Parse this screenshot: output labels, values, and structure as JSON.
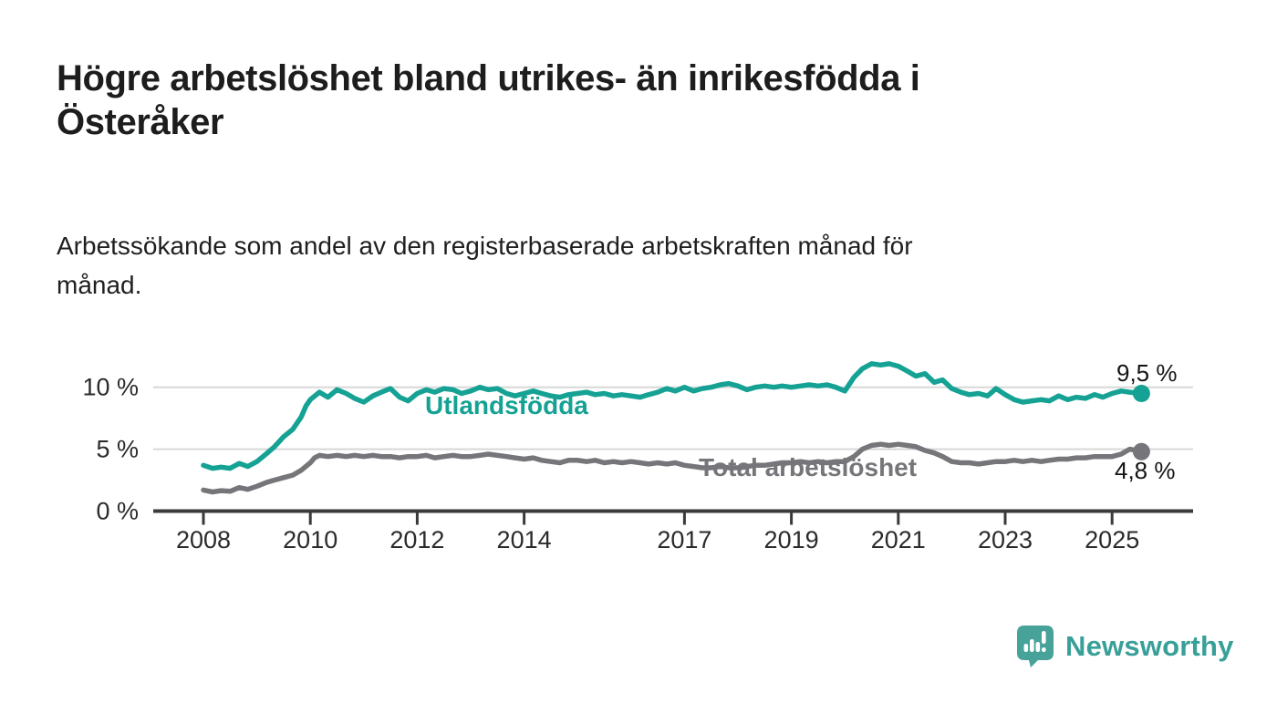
{
  "header": {
    "title": "Högre arbetslöshet bland utrikes- än inrikesfödda i\nÖsteråker",
    "subtitle": "Arbetssökande som andel av den registerbaserade arbetskraften månad för\nmånad."
  },
  "footer": {
    "brand": "Newsworthy",
    "logo_icon": "speech-bubble-bar-chart-icon"
  },
  "colors": {
    "foreign_born_line": "#15a294",
    "total_line": "#76767a",
    "grid": "#d8d8d8",
    "axis": "#3a3a3a",
    "tick_label": "#2b2b2b",
    "title_text": "#1d1d1d",
    "logo_teal": "#47a29a"
  },
  "chart_data": {
    "type": "line",
    "title": "",
    "xlabel": "",
    "ylabel": "",
    "x_range": [
      2007.05,
      2026.45
    ],
    "ylim": [
      0,
      12.5
    ],
    "grid": "horizontal",
    "legend_position": "inline-labels",
    "x_ticks": [
      2008,
      2010,
      2012,
      2014,
      2017,
      2019,
      2021,
      2023,
      2025
    ],
    "x_tick_labels": [
      "2008",
      "2010",
      "2012",
      "2014",
      "2017",
      "2019",
      "2021",
      "2023",
      "2025"
    ],
    "y_ticks": [
      0,
      5,
      10
    ],
    "y_tick_labels": [
      "0 %",
      "5 %",
      "10 %"
    ],
    "series": [
      {
        "id": "utlandsfodda",
        "name": "Utlandsfödda",
        "color": "#15a294",
        "end_label": "9,5 %",
        "end_value": 9.5,
        "points": [
          [
            2008.0,
            3.7
          ],
          [
            2008.17,
            3.45
          ],
          [
            2008.33,
            3.55
          ],
          [
            2008.5,
            3.45
          ],
          [
            2008.67,
            3.85
          ],
          [
            2008.83,
            3.6
          ],
          [
            2009.0,
            4.0
          ],
          [
            2009.17,
            4.6
          ],
          [
            2009.33,
            5.2
          ],
          [
            2009.5,
            6.0
          ],
          [
            2009.67,
            6.6
          ],
          [
            2009.83,
            7.6
          ],
          [
            2009.92,
            8.5
          ],
          [
            2010.0,
            9.0
          ],
          [
            2010.17,
            9.6
          ],
          [
            2010.33,
            9.2
          ],
          [
            2010.5,
            9.8
          ],
          [
            2010.67,
            9.5
          ],
          [
            2010.83,
            9.1
          ],
          [
            2011.0,
            8.8
          ],
          [
            2011.17,
            9.3
          ],
          [
            2011.33,
            9.6
          ],
          [
            2011.5,
            9.9
          ],
          [
            2011.67,
            9.2
          ],
          [
            2011.83,
            8.9
          ],
          [
            2012.0,
            9.5
          ],
          [
            2012.17,
            9.8
          ],
          [
            2012.33,
            9.6
          ],
          [
            2012.5,
            9.9
          ],
          [
            2012.67,
            9.8
          ],
          [
            2012.83,
            9.5
          ],
          [
            2013.0,
            9.7
          ],
          [
            2013.17,
            10.0
          ],
          [
            2013.33,
            9.8
          ],
          [
            2013.5,
            9.9
          ],
          [
            2013.67,
            9.5
          ],
          [
            2013.83,
            9.3
          ],
          [
            2014.0,
            9.5
          ],
          [
            2014.17,
            9.7
          ],
          [
            2014.33,
            9.5
          ],
          [
            2014.5,
            9.3
          ],
          [
            2014.67,
            9.2
          ],
          [
            2014.83,
            9.4
          ],
          [
            2015.0,
            9.5
          ],
          [
            2015.17,
            9.6
          ],
          [
            2015.33,
            9.4
          ],
          [
            2015.5,
            9.5
          ],
          [
            2015.67,
            9.3
          ],
          [
            2015.83,
            9.4
          ],
          [
            2016.0,
            9.3
          ],
          [
            2016.17,
            9.2
          ],
          [
            2016.33,
            9.4
          ],
          [
            2016.5,
            9.6
          ],
          [
            2016.67,
            9.9
          ],
          [
            2016.83,
            9.7
          ],
          [
            2017.0,
            10.0
          ],
          [
            2017.17,
            9.7
          ],
          [
            2017.33,
            9.9
          ],
          [
            2017.5,
            10.0
          ],
          [
            2017.67,
            10.2
          ],
          [
            2017.83,
            10.3
          ],
          [
            2018.0,
            10.1
          ],
          [
            2018.17,
            9.8
          ],
          [
            2018.33,
            10.0
          ],
          [
            2018.5,
            10.1
          ],
          [
            2018.67,
            10.0
          ],
          [
            2018.83,
            10.1
          ],
          [
            2019.0,
            10.0
          ],
          [
            2019.17,
            10.1
          ],
          [
            2019.33,
            10.2
          ],
          [
            2019.5,
            10.1
          ],
          [
            2019.67,
            10.2
          ],
          [
            2019.83,
            10.0
          ],
          [
            2020.0,
            9.7
          ],
          [
            2020.17,
            10.8
          ],
          [
            2020.33,
            11.5
          ],
          [
            2020.5,
            11.9
          ],
          [
            2020.67,
            11.8
          ],
          [
            2020.83,
            11.9
          ],
          [
            2021.0,
            11.7
          ],
          [
            2021.17,
            11.3
          ],
          [
            2021.33,
            10.9
          ],
          [
            2021.5,
            11.1
          ],
          [
            2021.67,
            10.4
          ],
          [
            2021.83,
            10.6
          ],
          [
            2022.0,
            9.9
          ],
          [
            2022.17,
            9.6
          ],
          [
            2022.33,
            9.4
          ],
          [
            2022.5,
            9.5
          ],
          [
            2022.67,
            9.3
          ],
          [
            2022.83,
            9.9
          ],
          [
            2023.0,
            9.4
          ],
          [
            2023.17,
            9.0
          ],
          [
            2023.33,
            8.8
          ],
          [
            2023.5,
            8.9
          ],
          [
            2023.67,
            9.0
          ],
          [
            2023.83,
            8.9
          ],
          [
            2024.0,
            9.3
          ],
          [
            2024.17,
            9.0
          ],
          [
            2024.33,
            9.2
          ],
          [
            2024.5,
            9.1
          ],
          [
            2024.67,
            9.4
          ],
          [
            2024.83,
            9.2
          ],
          [
            2025.0,
            9.5
          ],
          [
            2025.17,
            9.7
          ],
          [
            2025.33,
            9.6
          ],
          [
            2025.55,
            9.5
          ]
        ]
      },
      {
        "id": "total",
        "name": "Total arbetslöshet",
        "color": "#76767a",
        "end_label": "4,8 %",
        "end_value": 4.8,
        "points": [
          [
            2008.0,
            1.7
          ],
          [
            2008.17,
            1.55
          ],
          [
            2008.33,
            1.65
          ],
          [
            2008.5,
            1.6
          ],
          [
            2008.67,
            1.9
          ],
          [
            2008.83,
            1.75
          ],
          [
            2009.0,
            2.0
          ],
          [
            2009.17,
            2.3
          ],
          [
            2009.33,
            2.5
          ],
          [
            2009.5,
            2.7
          ],
          [
            2009.67,
            2.9
          ],
          [
            2009.83,
            3.3
          ],
          [
            2010.0,
            3.9
          ],
          [
            2010.08,
            4.3
          ],
          [
            2010.17,
            4.5
          ],
          [
            2010.33,
            4.4
          ],
          [
            2010.5,
            4.5
          ],
          [
            2010.67,
            4.4
          ],
          [
            2010.83,
            4.5
          ],
          [
            2011.0,
            4.4
          ],
          [
            2011.17,
            4.5
          ],
          [
            2011.33,
            4.4
          ],
          [
            2011.5,
            4.4
          ],
          [
            2011.67,
            4.3
          ],
          [
            2011.83,
            4.4
          ],
          [
            2012.0,
            4.4
          ],
          [
            2012.17,
            4.5
          ],
          [
            2012.33,
            4.3
          ],
          [
            2012.5,
            4.4
          ],
          [
            2012.67,
            4.5
          ],
          [
            2012.83,
            4.4
          ],
          [
            2013.0,
            4.4
          ],
          [
            2013.17,
            4.5
          ],
          [
            2013.33,
            4.6
          ],
          [
            2013.5,
            4.5
          ],
          [
            2013.67,
            4.4
          ],
          [
            2013.83,
            4.3
          ],
          [
            2014.0,
            4.2
          ],
          [
            2014.17,
            4.3
          ],
          [
            2014.33,
            4.1
          ],
          [
            2014.5,
            4.0
          ],
          [
            2014.67,
            3.9
          ],
          [
            2014.83,
            4.1
          ],
          [
            2015.0,
            4.1
          ],
          [
            2015.17,
            4.0
          ],
          [
            2015.33,
            4.1
          ],
          [
            2015.5,
            3.9
          ],
          [
            2015.67,
            4.0
          ],
          [
            2015.83,
            3.9
          ],
          [
            2016.0,
            4.0
          ],
          [
            2016.17,
            3.9
          ],
          [
            2016.33,
            3.8
          ],
          [
            2016.5,
            3.9
          ],
          [
            2016.67,
            3.8
          ],
          [
            2016.83,
            3.9
          ],
          [
            2017.0,
            3.7
          ],
          [
            2017.17,
            3.6
          ],
          [
            2017.33,
            3.5
          ],
          [
            2017.5,
            3.5
          ],
          [
            2017.67,
            3.6
          ],
          [
            2017.83,
            3.5
          ],
          [
            2018.0,
            3.5
          ],
          [
            2018.17,
            3.6
          ],
          [
            2018.33,
            3.7
          ],
          [
            2018.5,
            3.7
          ],
          [
            2018.67,
            3.8
          ],
          [
            2018.83,
            3.9
          ],
          [
            2019.0,
            3.9
          ],
          [
            2019.17,
            4.0
          ],
          [
            2019.33,
            3.9
          ],
          [
            2019.5,
            4.0
          ],
          [
            2019.67,
            3.9
          ],
          [
            2019.83,
            4.0
          ],
          [
            2020.0,
            4.0
          ],
          [
            2020.17,
            4.4
          ],
          [
            2020.33,
            5.0
          ],
          [
            2020.5,
            5.3
          ],
          [
            2020.67,
            5.4
          ],
          [
            2020.83,
            5.3
          ],
          [
            2021.0,
            5.4
          ],
          [
            2021.17,
            5.3
          ],
          [
            2021.33,
            5.2
          ],
          [
            2021.5,
            4.9
          ],
          [
            2021.67,
            4.7
          ],
          [
            2021.83,
            4.4
          ],
          [
            2022.0,
            4.0
          ],
          [
            2022.17,
            3.9
          ],
          [
            2022.33,
            3.9
          ],
          [
            2022.5,
            3.8
          ],
          [
            2022.67,
            3.9
          ],
          [
            2022.83,
            4.0
          ],
          [
            2023.0,
            4.0
          ],
          [
            2023.17,
            4.1
          ],
          [
            2023.33,
            4.0
          ],
          [
            2023.5,
            4.1
          ],
          [
            2023.67,
            4.0
          ],
          [
            2023.83,
            4.1
          ],
          [
            2024.0,
            4.2
          ],
          [
            2024.17,
            4.2
          ],
          [
            2024.33,
            4.3
          ],
          [
            2024.5,
            4.3
          ],
          [
            2024.67,
            4.4
          ],
          [
            2024.83,
            4.4
          ],
          [
            2025.0,
            4.4
          ],
          [
            2025.17,
            4.6
          ],
          [
            2025.33,
            5.0
          ],
          [
            2025.45,
            4.9
          ],
          [
            2025.55,
            4.8
          ]
        ]
      }
    ]
  }
}
